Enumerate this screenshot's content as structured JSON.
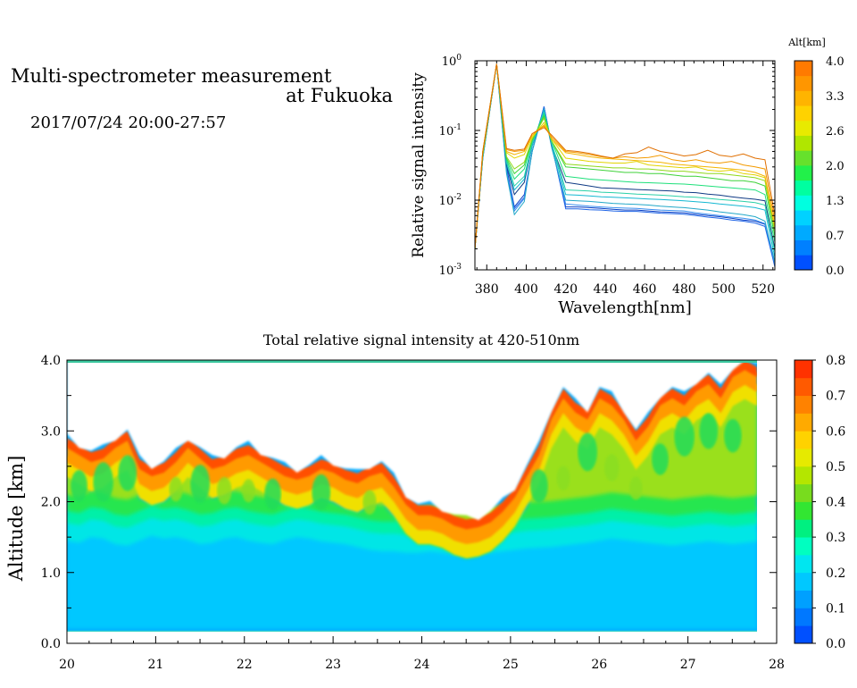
{
  "header": {
    "title_line1": "Multi-spectrometer measurement",
    "title_line2": "at Fukuoka",
    "datetime": "2017/07/24 20:00-27:57"
  },
  "chart_data": [
    {
      "type": "line",
      "xlabel": "Wavelength[nm]",
      "ylabel": "Relative signal intensity",
      "xlim": [
        374,
        526
      ],
      "ylim": [
        0.001,
        1
      ],
      "yscale": "log",
      "xticks": [
        380,
        400,
        420,
        440,
        460,
        480,
        500,
        520
      ],
      "yticks": [
        {
          "value": 0.001,
          "base": "10",
          "exp": "-3"
        },
        {
          "value": 0.01,
          "base": "10",
          "exp": "-2"
        },
        {
          "value": 0.1,
          "base": "10",
          "exp": "-1"
        },
        {
          "value": 1,
          "base": "10",
          "exp": "0"
        }
      ],
      "colorbar": {
        "title": "Alt[km]",
        "ticks": [
          "0.0",
          "0.7",
          "1.3",
          "2.0",
          "2.6",
          "3.3",
          "4.0"
        ],
        "colors": [
          "#0050ff",
          "#0080ff",
          "#00aaff",
          "#00d2ff",
          "#00ffe0",
          "#00ffa0",
          "#22f04a",
          "#66e12c",
          "#b0e600",
          "#e8ea00",
          "#ffd200",
          "#ffb400",
          "#ff9600",
          "#ff7a00"
        ]
      },
      "x": [
        374,
        378,
        385,
        390,
        394,
        399,
        403,
        409,
        413,
        420,
        426,
        432,
        438,
        444,
        450,
        456,
        462,
        468,
        474,
        480,
        486,
        492,
        498,
        504,
        510,
        516,
        521,
        526
      ],
      "series": [
        {
          "color": "#0a3ec4",
          "values": [
            0.002,
            0.04,
            0.9,
            0.03,
            0.008,
            0.012,
            0.05,
            0.22,
            0.06,
            0.008,
            0.008,
            0.0078,
            0.0076,
            0.0074,
            0.0072,
            0.0072,
            0.007,
            0.0068,
            0.0067,
            0.0066,
            0.0063,
            0.006,
            0.0058,
            0.0055,
            0.0052,
            0.005,
            0.0045,
            0.0012
          ]
        },
        {
          "color": "#1e64e6",
          "values": [
            0.002,
            0.04,
            0.9,
            0.028,
            0.0075,
            0.011,
            0.05,
            0.22,
            0.06,
            0.0075,
            0.0075,
            0.0073,
            0.0072,
            0.007,
            0.0069,
            0.0069,
            0.0067,
            0.0065,
            0.0064,
            0.0063,
            0.006,
            0.0057,
            0.0055,
            0.0052,
            0.005,
            0.0047,
            0.0042,
            0.0011
          ]
        },
        {
          "color": "#3b90f0",
          "values": [
            0.002,
            0.04,
            0.9,
            0.026,
            0.007,
            0.0105,
            0.05,
            0.21,
            0.058,
            0.0088,
            0.0085,
            0.0082,
            0.008,
            0.0078,
            0.0077,
            0.0076,
            0.0074,
            0.0072,
            0.0071,
            0.007,
            0.0066,
            0.0063,
            0.006,
            0.0057,
            0.0055,
            0.0052,
            0.0046,
            0.0012
          ]
        },
        {
          "color": "#22a8c8",
          "values": [
            0.002,
            0.04,
            0.9,
            0.024,
            0.0062,
            0.0095,
            0.05,
            0.2,
            0.055,
            0.01,
            0.0098,
            0.0096,
            0.0093,
            0.009,
            0.0088,
            0.0087,
            0.0085,
            0.0082,
            0.008,
            0.0078,
            0.0075,
            0.0072,
            0.0068,
            0.0065,
            0.0062,
            0.0058,
            0.005,
            0.0013
          ]
        },
        {
          "color": "#0f3a84",
          "values": [
            0.002,
            0.045,
            0.9,
            0.032,
            0.012,
            0.018,
            0.06,
            0.2,
            0.06,
            0.018,
            0.017,
            0.016,
            0.015,
            0.0148,
            0.0145,
            0.0142,
            0.014,
            0.0137,
            0.0135,
            0.013,
            0.0128,
            0.0122,
            0.0118,
            0.0112,
            0.0107,
            0.0103,
            0.0098,
            0.002
          ]
        },
        {
          "color": "#14b8d2",
          "values": [
            0.002,
            0.045,
            0.9,
            0.034,
            0.014,
            0.02,
            0.06,
            0.2,
            0.062,
            0.012,
            0.0118,
            0.0115,
            0.0112,
            0.011,
            0.0108,
            0.0106,
            0.0104,
            0.0102,
            0.01,
            0.0098,
            0.0095,
            0.0092,
            0.0088,
            0.0085,
            0.0082,
            0.0078,
            0.0072,
            0.0015
          ]
        },
        {
          "color": "#2ad0a8",
          "values": [
            0.002,
            0.045,
            0.9,
            0.036,
            0.016,
            0.022,
            0.065,
            0.18,
            0.065,
            0.014,
            0.0138,
            0.0135,
            0.013,
            0.0128,
            0.0125,
            0.0122,
            0.012,
            0.0118,
            0.0115,
            0.0112,
            0.011,
            0.0106,
            0.0102,
            0.0099,
            0.0096,
            0.0092,
            0.0085,
            0.0018
          ]
        },
        {
          "color": "#1ee07a",
          "values": [
            0.002,
            0.045,
            0.9,
            0.038,
            0.02,
            0.028,
            0.07,
            0.17,
            0.07,
            0.022,
            0.021,
            0.02,
            0.0195,
            0.019,
            0.0185,
            0.018,
            0.0178,
            0.0175,
            0.0172,
            0.017,
            0.0165,
            0.016,
            0.0155,
            0.015,
            0.0145,
            0.014,
            0.012,
            0.0025
          ]
        },
        {
          "color": "#3fd23a",
          "values": [
            0.002,
            0.045,
            0.9,
            0.04,
            0.024,
            0.032,
            0.072,
            0.16,
            0.07,
            0.03,
            0.029,
            0.028,
            0.027,
            0.026,
            0.025,
            0.025,
            0.024,
            0.024,
            0.023,
            0.022,
            0.022,
            0.021,
            0.02,
            0.019,
            0.019,
            0.018,
            0.016,
            0.003
          ]
        },
        {
          "color": "#8fd81a",
          "values": [
            0.002,
            0.045,
            0.9,
            0.042,
            0.028,
            0.035,
            0.075,
            0.15,
            0.07,
            0.033,
            0.032,
            0.031,
            0.03,
            0.029,
            0.029,
            0.028,
            0.028,
            0.027,
            0.026,
            0.026,
            0.025,
            0.024,
            0.024,
            0.023,
            0.022,
            0.021,
            0.019,
            0.0035
          ]
        },
        {
          "color": "#e2d400",
          "values": [
            0.002,
            0.05,
            0.9,
            0.048,
            0.04,
            0.045,
            0.08,
            0.13,
            0.075,
            0.04,
            0.038,
            0.036,
            0.035,
            0.034,
            0.034,
            0.036,
            0.032,
            0.031,
            0.03,
            0.029,
            0.03,
            0.027,
            0.026,
            0.027,
            0.024,
            0.023,
            0.021,
            0.004
          ]
        },
        {
          "color": "#f4b400",
          "values": [
            0.002,
            0.05,
            0.9,
            0.05,
            0.045,
            0.05,
            0.085,
            0.12,
            0.075,
            0.048,
            0.045,
            0.042,
            0.04,
            0.039,
            0.038,
            0.037,
            0.036,
            0.035,
            0.033,
            0.032,
            0.031,
            0.03,
            0.029,
            0.028,
            0.027,
            0.025,
            0.022,
            0.0042
          ]
        },
        {
          "color": "#f39a00",
          "values": [
            0.002,
            0.05,
            0.9,
            0.053,
            0.05,
            0.052,
            0.09,
            0.115,
            0.08,
            0.05,
            0.048,
            0.045,
            0.042,
            0.04,
            0.042,
            0.04,
            0.041,
            0.044,
            0.038,
            0.036,
            0.038,
            0.035,
            0.034,
            0.036,
            0.032,
            0.03,
            0.028,
            0.005
          ]
        },
        {
          "color": "#e06f00",
          "values": [
            0.002,
            0.05,
            0.9,
            0.055,
            0.052,
            0.054,
            0.09,
            0.11,
            0.085,
            0.052,
            0.05,
            0.047,
            0.043,
            0.04,
            0.046,
            0.048,
            0.058,
            0.05,
            0.047,
            0.043,
            0.045,
            0.052,
            0.044,
            0.042,
            0.046,
            0.04,
            0.038,
            0.006
          ]
        }
      ]
    },
    {
      "type": "heatmap",
      "title": "Total relative signal intensity at 420-510nm",
      "xlabel": "",
      "ylabel": "Altitude [km]",
      "xlim": [
        20,
        28
      ],
      "ylim": [
        0,
        4
      ],
      "xticks": [
        "20",
        "21",
        "22",
        "23",
        "24",
        "25",
        "26",
        "27",
        "28"
      ],
      "yticks": [
        "0.0",
        "1.0",
        "2.0",
        "3.0",
        "4.0"
      ],
      "colorbar": {
        "ticks": [
          "0.0",
          "0.1",
          "0.2",
          "0.3",
          "0.4",
          "0.5",
          "0.6",
          "0.7",
          "0.8"
        ],
        "colors": [
          "#0050ff",
          "#0078ff",
          "#00a0ff",
          "#00c8ff",
          "#00e6f0",
          "#00ffc0",
          "#00f080",
          "#32e632",
          "#78dc1e",
          "#b4e600",
          "#e6ea00",
          "#ffd200",
          "#ffaa00",
          "#ff8200",
          "#ff5a00",
          "#ff3200"
        ]
      },
      "cloud_base_km": [
        2.9,
        2.8,
        2.7,
        2.75,
        2.9,
        3.0,
        2.6,
        2.5,
        2.55,
        2.7,
        2.9,
        2.75,
        2.6,
        2.65,
        2.75,
        2.8,
        2.7,
        2.6,
        2.5,
        2.45,
        2.5,
        2.6,
        2.55,
        2.45,
        2.4,
        2.5,
        2.55,
        2.35,
        2.1,
        1.95,
        1.95,
        1.9,
        1.8,
        1.75,
        1.78,
        1.85,
        2.0,
        2.2,
        2.5,
        2.8,
        3.3,
        3.6,
        3.4,
        3.3,
        3.6,
        3.5,
        3.3,
        3.0,
        3.2,
        3.5,
        3.6,
        3.5,
        3.7,
        3.8,
        3.6,
        3.9,
        4.0,
        3.9
      ],
      "boundary_layer_km": [
        1.75,
        1.72,
        1.8,
        1.78,
        1.7,
        1.68,
        1.75,
        1.82,
        1.78,
        1.8,
        1.76,
        1.7,
        1.72,
        1.78,
        1.8,
        1.75,
        1.72,
        1.7,
        1.76,
        1.8,
        1.78,
        1.74,
        1.72,
        1.7,
        1.66,
        1.62,
        1.6,
        1.6,
        1.58,
        1.58,
        1.6,
        1.58,
        1.55,
        1.55,
        1.56,
        1.58,
        1.6,
        1.62,
        1.64,
        1.65,
        1.66,
        1.68,
        1.7,
        1.72,
        1.75,
        1.78,
        1.76,
        1.74,
        1.72,
        1.7,
        1.68,
        1.7,
        1.72,
        1.74,
        1.72,
        1.7,
        1.72,
        1.74
      ]
    }
  ]
}
